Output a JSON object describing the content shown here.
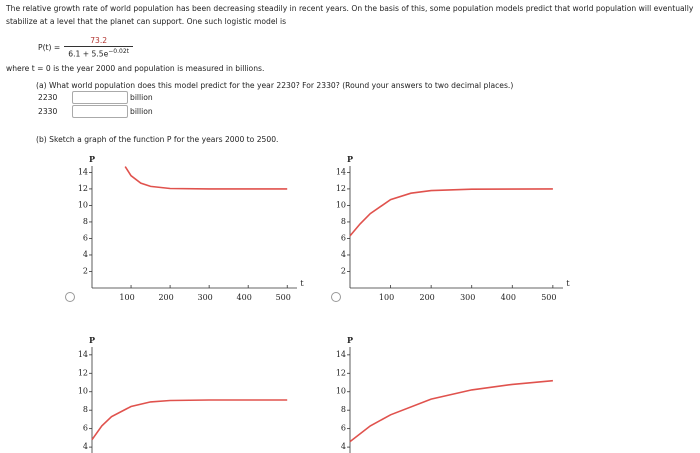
{
  "problem": {
    "intro": "The relative growth rate of world population has been decreasing steadily in recent years. On the basis of this, some population models predict that world population will eventually stabilize at a level that the planet can support. One such logistic model is",
    "formula": {
      "lhs": "P(t) =",
      "numerator": "73.2",
      "denominator": "6.1 + 5.5e",
      "exponent": "−0.02t"
    },
    "where": "where t = 0 is the year 2000 and population is measured in billions.",
    "part_a": {
      "question": "(a) What world population does this model predict for the year 2230? For 2330? (Round your answers to two decimal places.)",
      "rows": [
        {
          "year": "2230",
          "unit": "billion"
        },
        {
          "year": "2330",
          "unit": "billion"
        }
      ]
    },
    "part_b": "(b) Sketch a graph of the function P for the years 2000 to 2500."
  },
  "graphs": [
    {
      "type": "line",
      "y_label": "P",
      "x_label": "t",
      "color": "#e0524d",
      "x": [
        85,
        100,
        125,
        150,
        200,
        300,
        500
      ],
      "values": [
        14.7,
        13.6,
        12.7,
        12.3,
        12.05,
        12,
        12
      ],
      "xlim": [
        0,
        525
      ],
      "ylim": [
        0,
        15.5
      ],
      "xticks": [
        100,
        200,
        300,
        400,
        500
      ],
      "yticks": [
        2,
        4,
        6,
        8,
        10,
        12,
        14
      ]
    },
    {
      "type": "line",
      "y_label": "P",
      "x_label": "t",
      "color": "#e0524d",
      "x": [
        0,
        25,
        50,
        100,
        150,
        200,
        300,
        500
      ],
      "values": [
        6.31,
        7.76,
        9.01,
        10.7,
        11.48,
        11.8,
        11.97,
        12
      ],
      "xlim": [
        0,
        525
      ],
      "ylim": [
        0,
        15.5
      ],
      "xticks": [
        100,
        200,
        300,
        400,
        500
      ],
      "yticks": [
        2,
        4,
        6,
        8,
        10,
        12,
        14
      ]
    },
    {
      "type": "line",
      "y_label": "P",
      "color": "#e0524d",
      "x": [
        0,
        25,
        50,
        100,
        150,
        200,
        300,
        500
      ],
      "values": [
        4.8,
        6.3,
        7.3,
        8.4,
        8.9,
        9.05,
        9.1,
        9.1
      ],
      "xlim": [
        0,
        525
      ],
      "ylim": [
        0,
        15.5
      ],
      "yticks": [
        4,
        6,
        8,
        10,
        12,
        14
      ]
    },
    {
      "type": "line",
      "y_label": "P",
      "color": "#e0524d",
      "x": [
        0,
        50,
        100,
        200,
        300,
        400,
        500
      ],
      "values": [
        4.6,
        6.3,
        7.5,
        9.2,
        10.2,
        10.8,
        11.2
      ],
      "xlim": [
        0,
        525
      ],
      "ylim": [
        0,
        15.5
      ],
      "yticks": [
        4,
        6,
        8,
        10,
        12,
        14
      ]
    }
  ]
}
